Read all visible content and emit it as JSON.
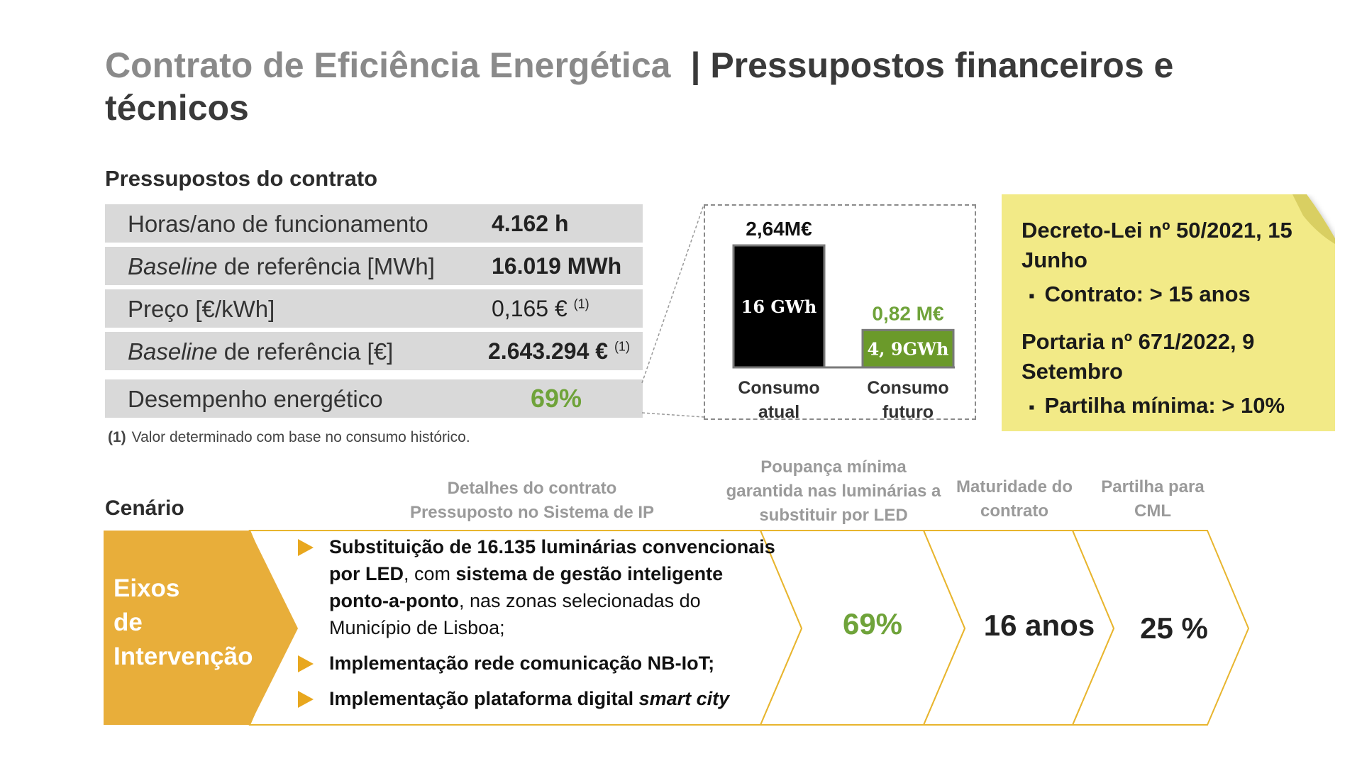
{
  "title": {
    "part1": "Contrato de Eficiência Energética",
    "part2": "| Pressupostos financeiros e técnicos"
  },
  "section_title": "Pressupostos do contrato",
  "params": [
    {
      "label": "Horas/ano de funcionamento",
      "value": "4.162 h"
    },
    {
      "label_italic": "Baseline",
      "label_rest": " de referência  [MWh]",
      "value": "16.019 MWh"
    },
    {
      "label": "Preço [€/kWh]",
      "value": "0,165 €",
      "note": "(1)"
    },
    {
      "label_italic": "Baseline",
      "label_rest": " de referência [€]",
      "value": "2.643.294 €",
      "note": "(1)"
    },
    {
      "label": "Desempenho energético",
      "value": "69%"
    }
  ],
  "footnote": {
    "marker": "(1)",
    "text": "Valor determinado com base no consumo histórico."
  },
  "chart_data": {
    "type": "bar",
    "categories": [
      "Consumo atual",
      "Consumo futuro"
    ],
    "values": [
      16,
      4.9
    ],
    "bar_labels": [
      "16 GWh",
      "4, 9GWh"
    ],
    "top_labels": [
      "2,64M€",
      "0,82 M€"
    ],
    "colors": [
      "#000000",
      "#6b9a2a"
    ],
    "title": "",
    "xlabel": "",
    "ylabel": "",
    "ylim": [
      0,
      16
    ]
  },
  "note": {
    "decree": "Decreto-Lei nº 50/2021, 15 Junho",
    "decree_bullet": "Contrato: > 15 anos",
    "portaria": "Portaria nº 671/2022, 9 Setembro",
    "portaria_bullet": "Partilha mínima: > 10%",
    "color": "#f2ea87"
  },
  "scenario": {
    "label": "Cenário",
    "col_headers": {
      "details": "Detalhes do contrato Pressuposto no Sistema de IP",
      "savings": "Poupança mínima garantida nas luminárias a substituir por LED",
      "maturity": "Maturidade do contrato",
      "share": "Partilha para CML"
    },
    "axis_label": "Eixos de Intervenção",
    "bullet1": {
      "b1": "Substituição de 16.135 luminárias convencionais por LED",
      "t1": ", com ",
      "b2": "sistema de gestão inteligente ponto-a-ponto",
      "t2": ", nas zonas selecionadas do Município de Lisboa;"
    },
    "bullet2": "Implementação rede comunicação NB-IoT;",
    "bullet3_bold": "Implementação plataforma digital ",
    "bullet3_italic": "smart city",
    "savings_value": "69%",
    "maturity_value": "16 anos",
    "share_value": "25 %",
    "accent_color": "#e8a71e",
    "green_color": "#6fa33a"
  }
}
